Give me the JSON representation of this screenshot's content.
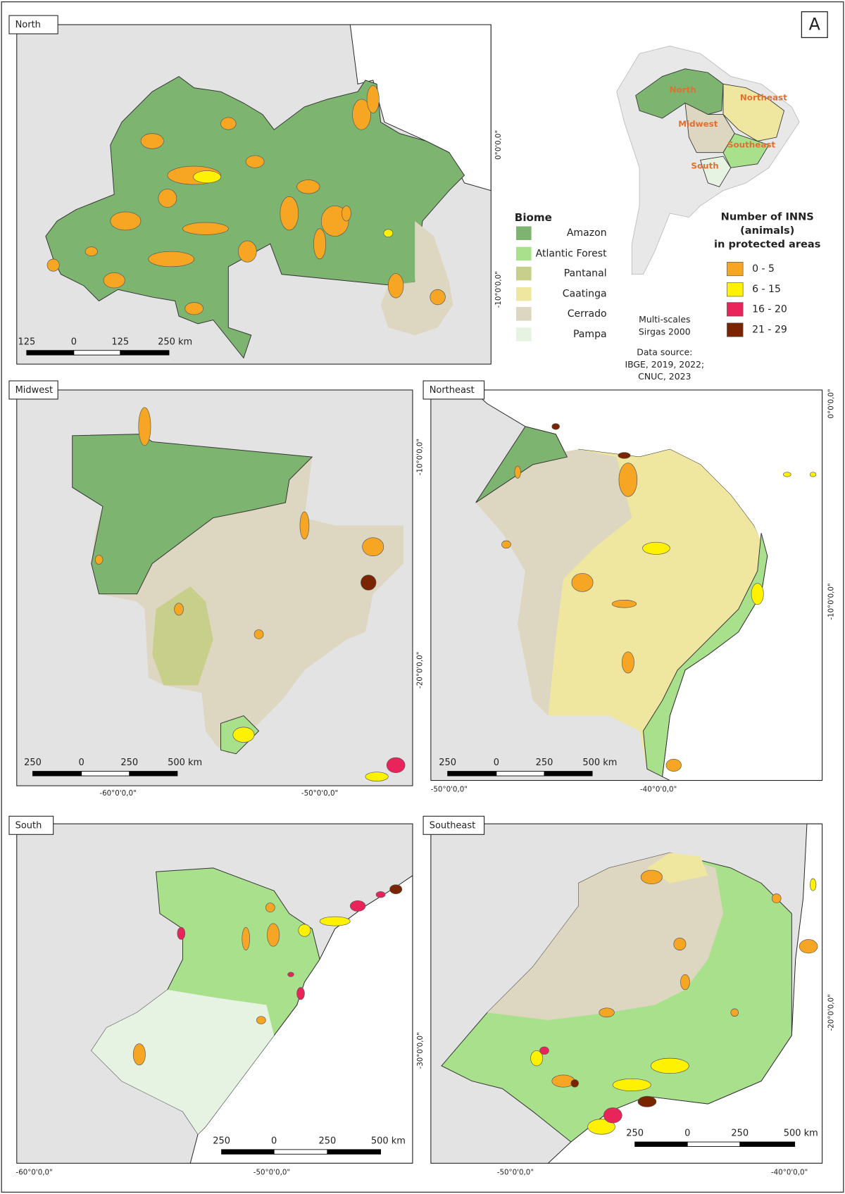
{
  "panel_letter": "A",
  "panels": [
    {
      "title": "North",
      "scale_labels": [
        "125",
        "0",
        "125",
        "250 km"
      ],
      "lat_labels": [
        "0°0'0,0\"",
        "-10°0'0,0\""
      ],
      "lon_labels": []
    },
    {
      "title": "Midwest",
      "scale_labels": [
        "250",
        "0",
        "250",
        "500 km"
      ],
      "lat_labels": [
        "-10°0'0,0\"",
        "-20°0'0,0\""
      ],
      "lon_labels": [
        "-60°0'0,0\"",
        "-50°0'0,0\""
      ]
    },
    {
      "title": "Northeast",
      "scale_labels": [
        "250",
        "0",
        "250",
        "500 km"
      ],
      "lat_labels": [
        "0°0'0,0\"",
        "-10°0'0,0\""
      ],
      "lon_labels": [
        "-50°0'0,0\"",
        "-40°0'0,0\""
      ]
    },
    {
      "title": "South",
      "scale_labels": [
        "250",
        "0",
        "250",
        "500 km"
      ],
      "lat_labels": [
        "-30°0'0,0\""
      ],
      "lon_labels": [
        "-60°0'0,0\"",
        "-50°0'0,0\""
      ]
    },
    {
      "title": "Southeast",
      "scale_labels": [
        "250",
        "0",
        "250",
        "500 km"
      ],
      "lat_labels": [
        "-20°0'0,0\""
      ],
      "lon_labels": [
        "-50°0'0,0\"",
        "-40°0'0,0\""
      ]
    }
  ],
  "inset": {
    "regions": [
      "North",
      "Northeast",
      "Midwest",
      "Southeast",
      "South"
    ]
  },
  "biome_legend": {
    "title": "Biome",
    "items": [
      {
        "label": "Amazon",
        "color": "#7db46f"
      },
      {
        "label": "Atlantic Forest",
        "color": "#a8e08c"
      },
      {
        "label": "Pantanal",
        "color": "#c8cf8a"
      },
      {
        "label": "Caatinga",
        "color": "#efe79f"
      },
      {
        "label": "Cerrado",
        "color": "#ddd6c0"
      },
      {
        "label": "Pampa",
        "color": "#e6f2e2"
      }
    ]
  },
  "inns_legend": {
    "title": [
      "Number of INNS",
      "(animals)",
      "in protected areas"
    ],
    "items": [
      {
        "label": "0 - 5",
        "color": "#f6a623"
      },
      {
        "label": "6 - 15",
        "color": "#fff200"
      },
      {
        "label": "16 - 20",
        "color": "#e8245a"
      },
      {
        "label": "21 - 29",
        "color": "#7a2400"
      }
    ]
  },
  "credits": [
    "Multi-scales",
    "Sirgas 2000",
    "Data source:",
    "IBGE, 2019, 2022;",
    "CNUC, 2023"
  ]
}
